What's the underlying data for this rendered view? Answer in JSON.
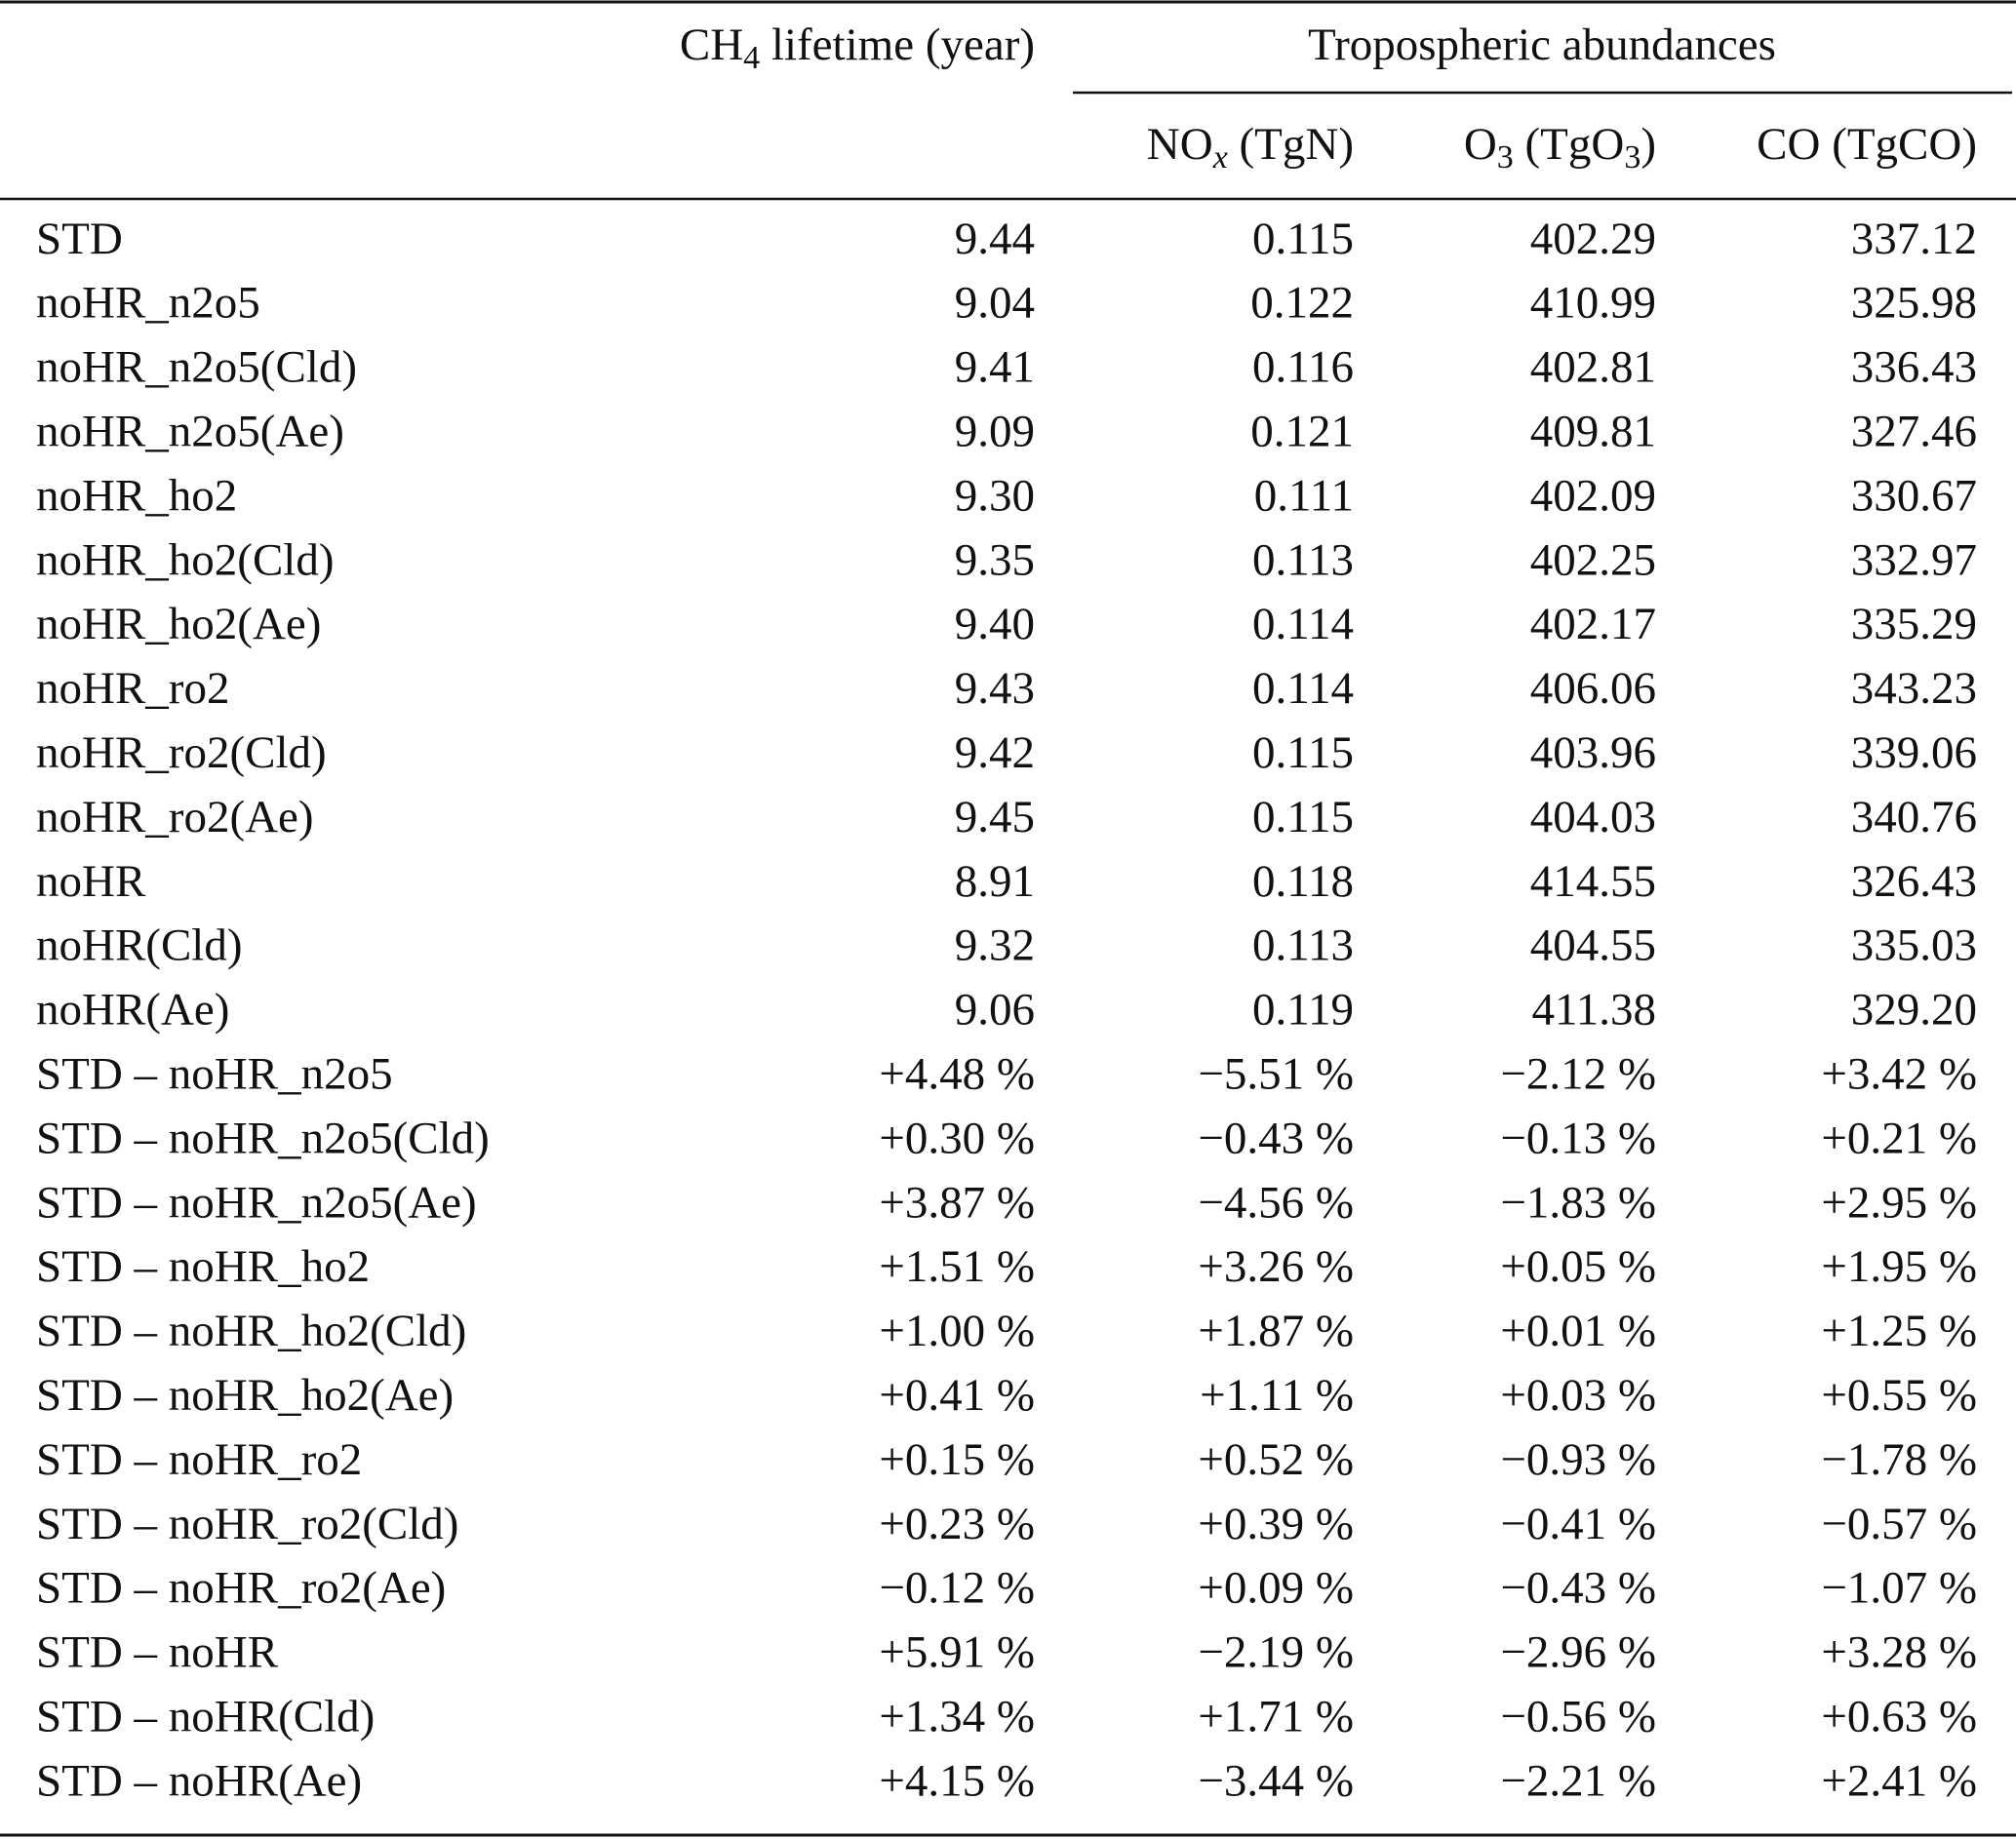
{
  "header": {
    "lifetime": [
      {
        "text": "CH"
      },
      {
        "text": "4",
        "sub": true
      },
      {
        "text": " lifetime (year)"
      }
    ],
    "group": "Tropospheric abundances",
    "columns": [
      [
        {
          "text": "NO"
        },
        {
          "text": "x",
          "sub": true,
          "italic": true
        },
        {
          "text": " (TgN)"
        }
      ],
      [
        {
          "text": "O"
        },
        {
          "text": "3",
          "sub": true
        },
        {
          "text": " (TgO"
        },
        {
          "text": "3",
          "sub": true
        },
        {
          "text": ")"
        }
      ],
      [
        {
          "text": "CO (TgCO)"
        }
      ]
    ]
  },
  "table": {
    "rows": [
      [
        "STD",
        "9.44",
        "0.115",
        "402.29",
        "337.12"
      ],
      [
        "noHR_n2o5",
        "9.04",
        "0.122",
        "410.99",
        "325.98"
      ],
      [
        "noHR_n2o5(Cld)",
        "9.41",
        "0.116",
        "402.81",
        "336.43"
      ],
      [
        "noHR_n2o5(Ae)",
        "9.09",
        "0.121",
        "409.81",
        "327.46"
      ],
      [
        "noHR_ho2",
        "9.30",
        "0.111",
        "402.09",
        "330.67"
      ],
      [
        "noHR_ho2(Cld)",
        "9.35",
        "0.113",
        "402.25",
        "332.97"
      ],
      [
        "noHR_ho2(Ae)",
        "9.40",
        "0.114",
        "402.17",
        "335.29"
      ],
      [
        "noHR_ro2",
        "9.43",
        "0.114",
        "406.06",
        "343.23"
      ],
      [
        "noHR_ro2(Cld)",
        "9.42",
        "0.115",
        "403.96",
        "339.06"
      ],
      [
        "noHR_ro2(Ae)",
        "9.45",
        "0.115",
        "404.03",
        "340.76"
      ],
      [
        "noHR",
        "8.91",
        "0.118",
        "414.55",
        "326.43"
      ],
      [
        "noHR(Cld)",
        "9.32",
        "0.113",
        "404.55",
        "335.03"
      ],
      [
        "noHR(Ae)",
        "9.06",
        "0.119",
        "411.38",
        "329.20"
      ],
      [
        "STD – noHR_n2o5",
        "+4.48 %",
        "−5.51 %",
        "−2.12 %",
        "+3.42 %"
      ],
      [
        "STD – noHR_n2o5(Cld)",
        "+0.30 %",
        "−0.43 %",
        "−0.13 %",
        "+0.21 %"
      ],
      [
        "STD – noHR_n2o5(Ae)",
        "+3.87 %",
        "−4.56 %",
        "−1.83 %",
        "+2.95 %"
      ],
      [
        "STD – noHR_ho2",
        "+1.51 %",
        "+3.26 %",
        "+0.05 %",
        "+1.95 %"
      ],
      [
        "STD – noHR_ho2(Cld)",
        "+1.00 %",
        "+1.87 %",
        "+0.01 %",
        "+1.25 %"
      ],
      [
        "STD – noHR_ho2(Ae)",
        "+0.41 %",
        "+1.11 %",
        "+0.03 %",
        "+0.55 %"
      ],
      [
        "STD – noHR_ro2",
        "+0.15 %",
        "+0.52 %",
        "−0.93 %",
        "−1.78 %"
      ],
      [
        "STD – noHR_ro2(Cld)",
        "+0.23 %",
        "+0.39 %",
        "−0.41 %",
        "−0.57 %"
      ],
      [
        "STD – noHR_ro2(Ae)",
        "−0.12 %",
        "+0.09 %",
        "−0.43 %",
        "−1.07 %"
      ],
      [
        "STD – noHR",
        "+5.91 %",
        "−2.19 %",
        "−2.96 %",
        "+3.28 %"
      ],
      [
        "STD – noHR(Cld)",
        "+1.34 %",
        "+1.71 %",
        "−0.56 %",
        "+0.63 %"
      ],
      [
        "STD – noHR(Ae)",
        "+4.15 %",
        "−3.44 %",
        "−2.21 %",
        "+2.41 %"
      ]
    ]
  }
}
